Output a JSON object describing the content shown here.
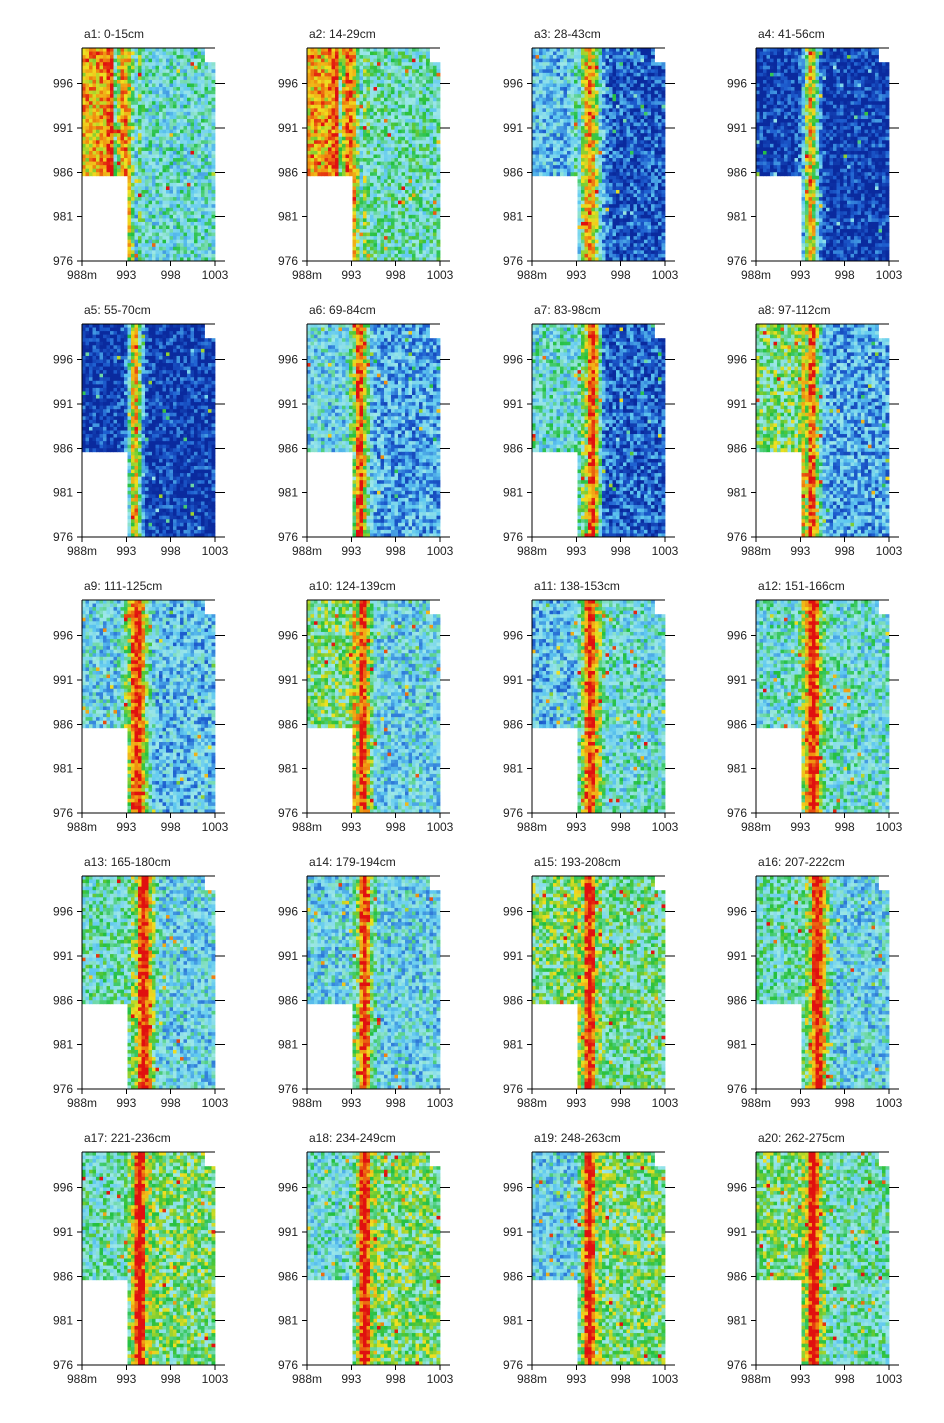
{
  "chart_data": {
    "type": "heatmap",
    "layout": {
      "rows": 5,
      "cols": 4
    },
    "x_ticks": [
      "988m",
      "993",
      "998",
      "1003"
    ],
    "x_tick_values": [
      988,
      993,
      998,
      1003
    ],
    "y_ticks": [
      "996",
      "991",
      "986",
      "981",
      "976"
    ],
    "y_tick_values": [
      996,
      991,
      986,
      981,
      976
    ],
    "xlim": [
      988,
      1003
    ],
    "ylim": [
      976,
      1000
    ],
    "colormap": [
      "#0a2a9e",
      "#1e5fd0",
      "#5fc8f0",
      "#9ee8e8",
      "#22c040",
      "#f0e020",
      "#f09010",
      "#e01010"
    ],
    "masked_region": {
      "x": [
        988,
        993
      ],
      "y": [
        976,
        985.5
      ],
      "color": "#ffffff"
    },
    "panels": [
      {
        "title": "a1: 0-15cm",
        "depth_cm": [
          0,
          15
        ],
        "anomaly_x": 992.8,
        "background": 0.1,
        "left_level": 0.8,
        "right_level": 0.4,
        "spread": 0.9
      },
      {
        "title": "a2: 14-29cm",
        "depth_cm": [
          14,
          29
        ],
        "anomaly_x": 992.8,
        "background": 0.15,
        "left_level": 0.8,
        "right_level": 0.45,
        "spread": 0.9
      },
      {
        "title": "a3: 28-43cm",
        "depth_cm": [
          28,
          43
        ],
        "anomaly_x": 994.5,
        "background": 0.08,
        "left_level": 0.3,
        "right_level": 0.1,
        "spread": 0.9
      },
      {
        "title": "a4: 41-56cm",
        "depth_cm": [
          41,
          56
        ],
        "anomaly_x": 994.2,
        "background": 0.05,
        "left_level": 0.05,
        "right_level": 0.05,
        "spread": 0.6
      },
      {
        "title": "a5: 55-70cm",
        "depth_cm": [
          55,
          70
        ],
        "anomaly_x": 994.0,
        "background": 0.05,
        "left_level": 0.05,
        "right_level": 0.05,
        "spread": 0.55
      },
      {
        "title": "a6: 69-84cm",
        "depth_cm": [
          69,
          84
        ],
        "anomaly_x": 994.0,
        "background": 0.2,
        "left_level": 0.35,
        "right_level": 0.25,
        "spread": 0.6
      },
      {
        "title": "a7: 83-98cm",
        "depth_cm": [
          83,
          98
        ],
        "anomaly_x": 994.8,
        "background": 0.22,
        "left_level": 0.4,
        "right_level": 0.12,
        "spread": 0.6
      },
      {
        "title": "a8: 97-112cm",
        "depth_cm": [
          97,
          112
        ],
        "anomaly_x": 994.3,
        "background": 0.18,
        "left_level": 0.55,
        "right_level": 0.25,
        "spread": 0.6
      },
      {
        "title": "a9: 111-125cm",
        "depth_cm": [
          111,
          125
        ],
        "anomaly_x": 994.2,
        "background": 0.25,
        "left_level": 0.35,
        "right_level": 0.3,
        "spread": 0.8
      },
      {
        "title": "a10: 124-139cm",
        "depth_cm": [
          124,
          139
        ],
        "anomaly_x": 994.3,
        "background": 0.25,
        "left_level": 0.55,
        "right_level": 0.35,
        "spread": 0.6
      },
      {
        "title": "a11: 138-153cm",
        "depth_cm": [
          138,
          153
        ],
        "anomaly_x": 994.6,
        "background": 0.25,
        "left_level": 0.3,
        "right_level": 0.4,
        "spread": 0.7
      },
      {
        "title": "a12: 151-166cm",
        "depth_cm": [
          151,
          166
        ],
        "anomaly_x": 994.4,
        "background": 0.28,
        "left_level": 0.4,
        "right_level": 0.4,
        "spread": 0.7
      },
      {
        "title": "a13: 165-180cm",
        "depth_cm": [
          165,
          180
        ],
        "anomaly_x": 995.0,
        "background": 0.28,
        "left_level": 0.45,
        "right_level": 0.35,
        "spread": 0.7
      },
      {
        "title": "a14: 179-194cm",
        "depth_cm": [
          179,
          194
        ],
        "anomaly_x": 994.5,
        "background": 0.25,
        "left_level": 0.35,
        "right_level": 0.35,
        "spread": 0.6
      },
      {
        "title": "a15: 193-208cm",
        "depth_cm": [
          193,
          208
        ],
        "anomaly_x": 994.5,
        "background": 0.3,
        "left_level": 0.55,
        "right_level": 0.5,
        "spread": 0.6
      },
      {
        "title": "a16: 207-222cm",
        "depth_cm": [
          207,
          222
        ],
        "anomaly_x": 995.0,
        "background": 0.3,
        "left_level": 0.45,
        "right_level": 0.35,
        "spread": 0.7
      },
      {
        "title": "a17: 221-236cm",
        "depth_cm": [
          221,
          236
        ],
        "anomaly_x": 994.5,
        "background": 0.35,
        "left_level": 0.45,
        "right_level": 0.55,
        "spread": 0.6
      },
      {
        "title": "a18: 234-249cm",
        "depth_cm": [
          234,
          249
        ],
        "anomaly_x": 994.5,
        "background": 0.32,
        "left_level": 0.4,
        "right_level": 0.55,
        "spread": 0.6
      },
      {
        "title": "a19: 248-263cm",
        "depth_cm": [
          248,
          263
        ],
        "anomaly_x": 994.5,
        "background": 0.3,
        "left_level": 0.35,
        "right_level": 0.55,
        "spread": 0.6
      },
      {
        "title": "a20: 262-275cm",
        "depth_cm": [
          262,
          275
        ],
        "anomaly_x": 994.5,
        "background": 0.35,
        "left_level": 0.55,
        "right_level": 0.45,
        "spread": 0.6
      }
    ]
  }
}
